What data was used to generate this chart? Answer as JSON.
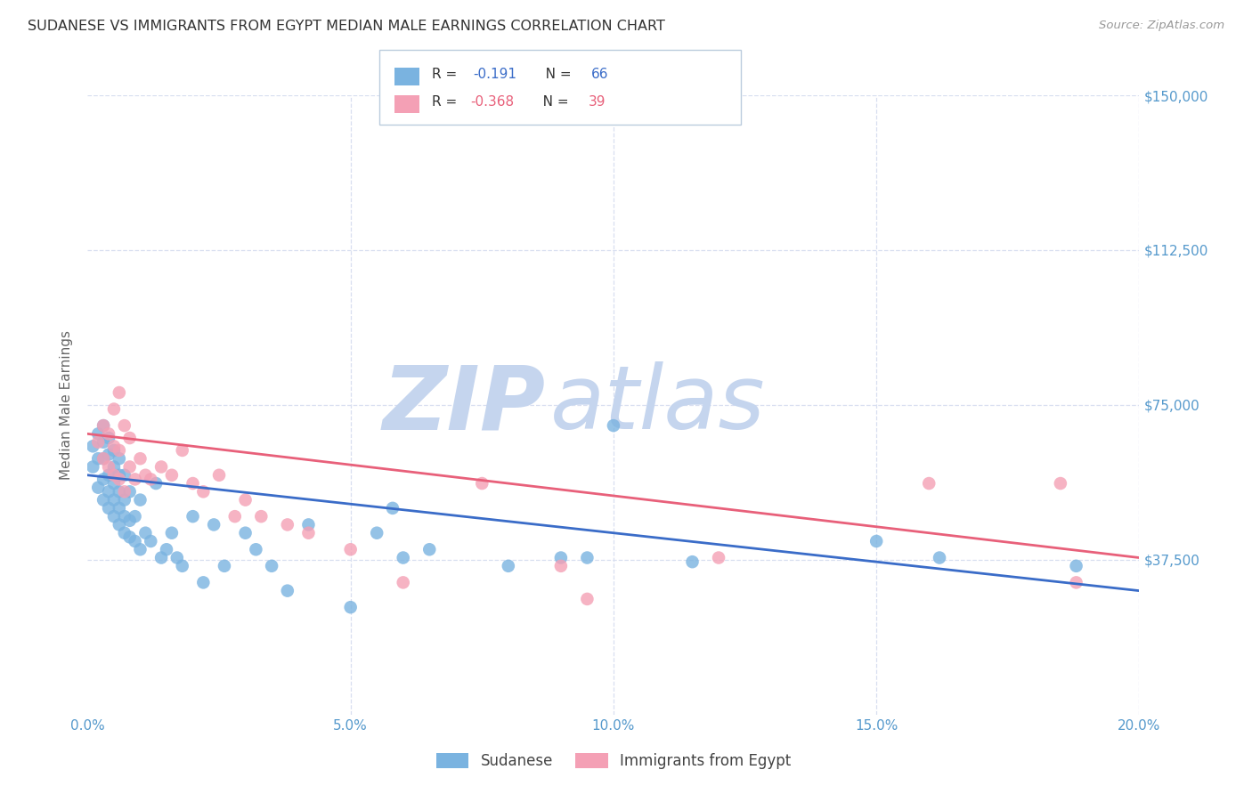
{
  "title": "SUDANESE VS IMMIGRANTS FROM EGYPT MEDIAN MALE EARNINGS CORRELATION CHART",
  "source": "Source: ZipAtlas.com",
  "ylabel": "Median Male Earnings",
  "xlim": [
    0.0,
    0.2
  ],
  "ylim": [
    0,
    150000
  ],
  "yticks": [
    0,
    37500,
    75000,
    112500,
    150000
  ],
  "ytick_labels": [
    "",
    "$37,500",
    "$75,000",
    "$112,500",
    "$150,000"
  ],
  "xticks": [
    0.0,
    0.05,
    0.1,
    0.15,
    0.2
  ],
  "xtick_labels": [
    "0.0%",
    "5.0%",
    "10.0%",
    "15.0%",
    "20.0%"
  ],
  "blue_color": "#7ab3e0",
  "pink_color": "#f4a0b5",
  "blue_line_color": "#3a6cc8",
  "pink_line_color": "#e8607a",
  "axis_tick_color": "#5599cc",
  "background_color": "#ffffff",
  "grid_color": "#d8dff0",
  "title_color": "#333333",
  "source_color": "#999999",
  "watermark_zip_color": "#c5d5ee",
  "watermark_atlas_color": "#c5d5ee",
  "legend_R1": "R =  -0.191   N = 66",
  "legend_R1_val": "-0.191",
  "legend_N1_val": "66",
  "legend_R2": "R = -0.368   N = 39",
  "legend_R2_val": "-0.368",
  "legend_N2_val": "39",
  "blue_scatter_x": [
    0.001,
    0.001,
    0.002,
    0.002,
    0.002,
    0.003,
    0.003,
    0.003,
    0.003,
    0.003,
    0.004,
    0.004,
    0.004,
    0.004,
    0.004,
    0.005,
    0.005,
    0.005,
    0.005,
    0.005,
    0.006,
    0.006,
    0.006,
    0.006,
    0.006,
    0.007,
    0.007,
    0.007,
    0.007,
    0.008,
    0.008,
    0.008,
    0.009,
    0.009,
    0.01,
    0.01,
    0.011,
    0.012,
    0.013,
    0.014,
    0.015,
    0.016,
    0.017,
    0.018,
    0.02,
    0.022,
    0.024,
    0.026,
    0.03,
    0.032,
    0.035,
    0.038,
    0.042,
    0.05,
    0.055,
    0.058,
    0.06,
    0.065,
    0.08,
    0.09,
    0.095,
    0.1,
    0.115,
    0.15,
    0.162,
    0.188
  ],
  "blue_scatter_y": [
    60000,
    65000,
    55000,
    62000,
    68000,
    52000,
    57000,
    62000,
    66000,
    70000,
    50000,
    54000,
    58000,
    63000,
    67000,
    48000,
    52000,
    56000,
    60000,
    64000,
    46000,
    50000,
    54000,
    58000,
    62000,
    44000,
    48000,
    52000,
    58000,
    43000,
    47000,
    54000,
    42000,
    48000,
    40000,
    52000,
    44000,
    42000,
    56000,
    38000,
    40000,
    44000,
    38000,
    36000,
    48000,
    32000,
    46000,
    36000,
    44000,
    40000,
    36000,
    30000,
    46000,
    26000,
    44000,
    50000,
    38000,
    40000,
    36000,
    38000,
    38000,
    70000,
    37000,
    42000,
    38000,
    36000
  ],
  "pink_scatter_x": [
    0.002,
    0.003,
    0.003,
    0.004,
    0.004,
    0.005,
    0.005,
    0.005,
    0.006,
    0.006,
    0.006,
    0.007,
    0.007,
    0.008,
    0.008,
    0.009,
    0.01,
    0.011,
    0.012,
    0.014,
    0.016,
    0.018,
    0.02,
    0.022,
    0.025,
    0.028,
    0.03,
    0.033,
    0.038,
    0.042,
    0.05,
    0.06,
    0.075,
    0.09,
    0.095,
    0.12,
    0.16,
    0.185,
    0.188
  ],
  "pink_scatter_y": [
    66000,
    62000,
    70000,
    60000,
    68000,
    58000,
    65000,
    74000,
    57000,
    64000,
    78000,
    54000,
    70000,
    60000,
    67000,
    57000,
    62000,
    58000,
    57000,
    60000,
    58000,
    64000,
    56000,
    54000,
    58000,
    48000,
    52000,
    48000,
    46000,
    44000,
    40000,
    32000,
    56000,
    36000,
    28000,
    38000,
    56000,
    56000,
    32000
  ],
  "blue_line_x": [
    0.0,
    0.2
  ],
  "blue_line_y": [
    58000,
    30000
  ],
  "pink_line_x": [
    0.0,
    0.2
  ],
  "pink_line_y": [
    68000,
    38000
  ]
}
